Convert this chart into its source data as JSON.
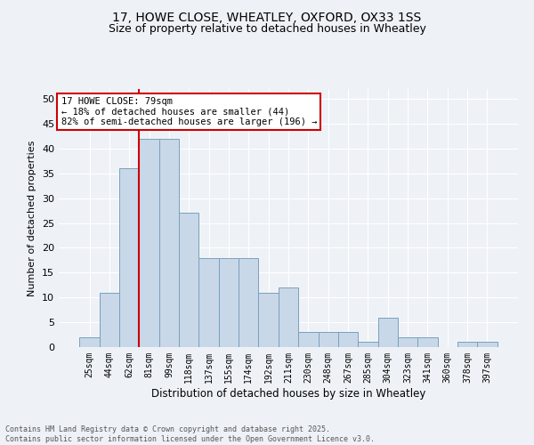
{
  "title_line1": "17, HOWE CLOSE, WHEATLEY, OXFORD, OX33 1SS",
  "title_line2": "Size of property relative to detached houses in Wheatley",
  "xlabel": "Distribution of detached houses by size in Wheatley",
  "ylabel": "Number of detached properties",
  "bar_labels": [
    "25sqm",
    "44sqm",
    "62sqm",
    "81sqm",
    "99sqm",
    "118sqm",
    "137sqm",
    "155sqm",
    "174sqm",
    "192sqm",
    "211sqm",
    "230sqm",
    "248sqm",
    "267sqm",
    "285sqm",
    "304sqm",
    "323sqm",
    "341sqm",
    "360sqm",
    "378sqm",
    "397sqm"
  ],
  "bar_values": [
    2,
    11,
    36,
    42,
    42,
    27,
    18,
    18,
    18,
    11,
    12,
    3,
    3,
    3,
    1,
    6,
    2,
    2,
    0,
    1,
    1
  ],
  "bar_color": "#c8d8e8",
  "bar_edge_color": "#7aa0bc",
  "ylim": [
    0,
    52
  ],
  "yticks": [
    0,
    5,
    10,
    15,
    20,
    25,
    30,
    35,
    40,
    45,
    50
  ],
  "vline_color": "#cc0000",
  "vline_index": 2.5,
  "annotation_text": "17 HOWE CLOSE: 79sqm\n← 18% of detached houses are smaller (44)\n82% of semi-detached houses are larger (196) →",
  "annotation_box_color": "#cc0000",
  "annotation_bg_color": "#ffffff",
  "footer_text": "Contains HM Land Registry data © Crown copyright and database right 2025.\nContains public sector information licensed under the Open Government Licence v3.0.",
  "background_color": "#eef2f7",
  "grid_color": "#ffffff",
  "title_fontsize": 10,
  "subtitle_fontsize": 9
}
